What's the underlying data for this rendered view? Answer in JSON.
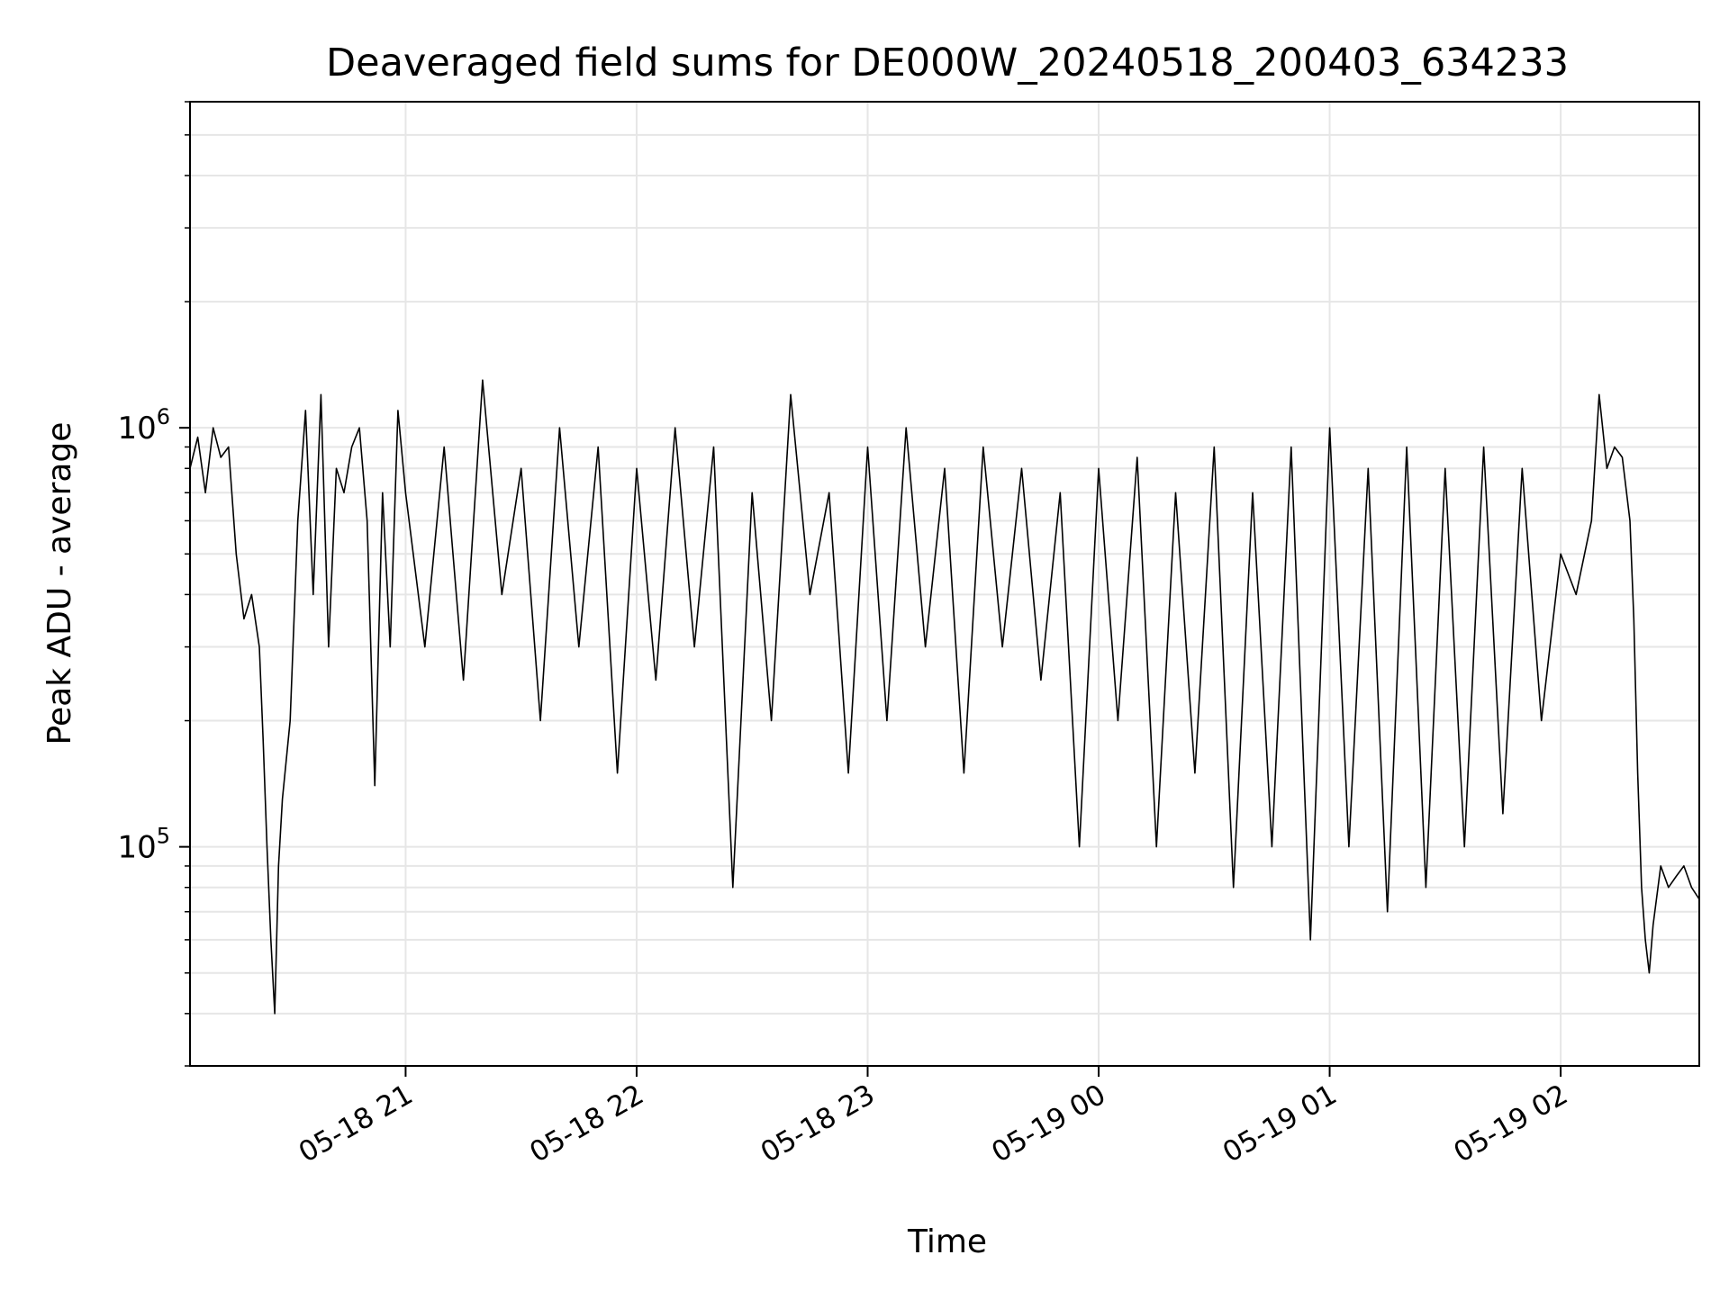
{
  "chart_data": {
    "type": "line",
    "title": "Deaveraged field sums for DE000W_20240518_200403_634233",
    "xlabel": "Time",
    "ylabel": "Peak ADU - average",
    "yscale": "log",
    "grid": true,
    "legend": "none",
    "xlim": [
      "2024-05-18 20:04",
      "2024-05-19 02:36"
    ],
    "ylim": [
      30000,
      6000000
    ],
    "x_ticks": [
      "05-18 21",
      "05-18 22",
      "05-18 23",
      "05-19 00",
      "05-19 01",
      "05-19 02"
    ],
    "x_tick_times": [
      "2024-05-18 21:00",
      "2024-05-18 22:00",
      "2024-05-18 23:00",
      "2024-05-19 00:00",
      "2024-05-19 01:00",
      "2024-05-19 02:00"
    ],
    "y_ticks": [
      {
        "base": "10",
        "exp": "5",
        "value": 100000
      },
      {
        "base": "10",
        "exp": "6",
        "value": 1000000
      }
    ],
    "series": [
      {
        "color": "#000000",
        "x": [
          "2024-05-18 20:04",
          "2024-05-18 20:06",
          "2024-05-18 20:08",
          "2024-05-18 20:10",
          "2024-05-18 20:12",
          "2024-05-18 20:14",
          "2024-05-18 20:16",
          "2024-05-18 20:18",
          "2024-05-18 20:20",
          "2024-05-18 20:22",
          "2024-05-18 20:23",
          "2024-05-18 20:24",
          "2024-05-18 20:25",
          "2024-05-18 20:26",
          "2024-05-18 20:27",
          "2024-05-18 20:28",
          "2024-05-18 20:30",
          "2024-05-18 20:32",
          "2024-05-18 20:34",
          "2024-05-18 20:36",
          "2024-05-18 20:38",
          "2024-05-18 20:40",
          "2024-05-18 20:42",
          "2024-05-18 20:44",
          "2024-05-18 20:46",
          "2024-05-18 20:48",
          "2024-05-18 20:50",
          "2024-05-18 20:52",
          "2024-05-18 20:54",
          "2024-05-18 20:56",
          "2024-05-18 20:58",
          "2024-05-18 21:00",
          "2024-05-18 21:05",
          "2024-05-18 21:10",
          "2024-05-18 21:15",
          "2024-05-18 21:20",
          "2024-05-18 21:25",
          "2024-05-18 21:30",
          "2024-05-18 21:35",
          "2024-05-18 21:40",
          "2024-05-18 21:45",
          "2024-05-18 21:50",
          "2024-05-18 21:55",
          "2024-05-18 22:00",
          "2024-05-18 22:05",
          "2024-05-18 22:10",
          "2024-05-18 22:15",
          "2024-05-18 22:20",
          "2024-05-18 22:25",
          "2024-05-18 22:30",
          "2024-05-18 22:35",
          "2024-05-18 22:40",
          "2024-05-18 22:45",
          "2024-05-18 22:50",
          "2024-05-18 22:55",
          "2024-05-18 23:00",
          "2024-05-18 23:05",
          "2024-05-18 23:10",
          "2024-05-18 23:15",
          "2024-05-18 23:20",
          "2024-05-18 23:25",
          "2024-05-18 23:30",
          "2024-05-18 23:35",
          "2024-05-18 23:40",
          "2024-05-18 23:45",
          "2024-05-18 23:50",
          "2024-05-18 23:55",
          "2024-05-19 00:00",
          "2024-05-19 00:05",
          "2024-05-19 00:10",
          "2024-05-19 00:15",
          "2024-05-19 00:20",
          "2024-05-19 00:25",
          "2024-05-19 00:30",
          "2024-05-19 00:35",
          "2024-05-19 00:40",
          "2024-05-19 00:45",
          "2024-05-19 00:50",
          "2024-05-19 00:55",
          "2024-05-19 01:00",
          "2024-05-19 01:05",
          "2024-05-19 01:10",
          "2024-05-19 01:15",
          "2024-05-19 01:20",
          "2024-05-19 01:25",
          "2024-05-19 01:30",
          "2024-05-19 01:35",
          "2024-05-19 01:40",
          "2024-05-19 01:45",
          "2024-05-19 01:50",
          "2024-05-19 01:55",
          "2024-05-19 02:00",
          "2024-05-19 02:04",
          "2024-05-19 02:08",
          "2024-05-19 02:10",
          "2024-05-19 02:12",
          "2024-05-19 02:14",
          "2024-05-19 02:16",
          "2024-05-19 02:18",
          "2024-05-19 02:19",
          "2024-05-19 02:20",
          "2024-05-19 02:21",
          "2024-05-19 02:22",
          "2024-05-19 02:23",
          "2024-05-19 02:24",
          "2024-05-19 02:26",
          "2024-05-19 02:28",
          "2024-05-19 02:30",
          "2024-05-19 02:32",
          "2024-05-19 02:34",
          "2024-05-19 02:36"
        ],
        "y": [
          800000,
          950000,
          700000,
          1000000,
          850000,
          900000,
          500000,
          350000,
          400000,
          300000,
          180000,
          100000,
          60000,
          40000,
          90000,
          130000,
          200000,
          600000,
          1100000,
          400000,
          1200000,
          300000,
          800000,
          700000,
          900000,
          1000000,
          600000,
          140000,
          700000,
          300000,
          1100000,
          700000,
          300000,
          900000,
          250000,
          1300000,
          400000,
          800000,
          200000,
          1000000,
          300000,
          900000,
          150000,
          800000,
          250000,
          1000000,
          300000,
          900000,
          80000,
          700000,
          200000,
          1200000,
          400000,
          700000,
          150000,
          900000,
          200000,
          1000000,
          300000,
          800000,
          150000,
          900000,
          300000,
          800000,
          250000,
          700000,
          100000,
          800000,
          200000,
          850000,
          100000,
          700000,
          150000,
          900000,
          80000,
          700000,
          100000,
          900000,
          60000,
          1000000,
          100000,
          800000,
          70000,
          900000,
          80000,
          800000,
          100000,
          900000,
          120000,
          800000,
          200000,
          500000,
          400000,
          600000,
          1200000,
          800000,
          900000,
          850000,
          600000,
          350000,
          150000,
          80000,
          60000,
          50000,
          65000,
          90000,
          80000,
          85000,
          90000,
          80000,
          75000
        ]
      }
    ]
  }
}
